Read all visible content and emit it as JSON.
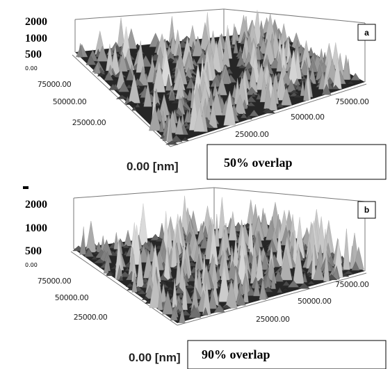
{
  "panels": [
    {
      "label": "a",
      "z_ticks": [
        "2000",
        "1000",
        "500",
        "0.00"
      ],
      "left_ticks": [
        "75000.00",
        "50000.00",
        "25000.00"
      ],
      "origin": "0.00 [nm]",
      "right_ticks": [
        "75000.00",
        "50000.00",
        "25000.00"
      ],
      "caption": "50% overlap"
    },
    {
      "label": "b",
      "z_ticks": [
        "2000",
        "1000",
        "500",
        "0.00"
      ],
      "left_ticks": [
        "75000.00",
        "50000.00",
        "25000.00"
      ],
      "origin": "0.00 [nm]",
      "right_ticks": [
        "75000.00",
        "50000.00",
        "25000.00"
      ],
      "caption": "90% overlap"
    }
  ]
}
